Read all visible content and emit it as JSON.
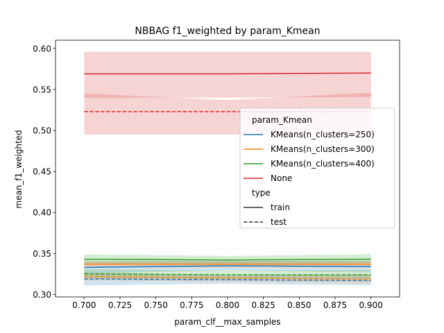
{
  "chart_data": {
    "type": "line",
    "title": "NBBAG f1_weighted by param_Kmean",
    "xlabel": "param_clf__max_samples",
    "ylabel": "mean_f1_weighted",
    "xlim": [
      0.68,
      0.92
    ],
    "ylim": [
      0.297,
      0.61
    ],
    "x_ticks": [
      0.7,
      0.725,
      0.75,
      0.775,
      0.8,
      0.825,
      0.85,
      0.875,
      0.9
    ],
    "x_tick_labels": [
      "0.700",
      "0.725",
      "0.750",
      "0.775",
      "0.800",
      "0.825",
      "0.850",
      "0.875",
      "0.900"
    ],
    "y_ticks": [
      0.3,
      0.35,
      0.4,
      0.45,
      0.5,
      0.55,
      0.6
    ],
    "y_tick_labels": [
      "0.30",
      "0.35",
      "0.40",
      "0.45",
      "0.50",
      "0.55",
      "0.60"
    ],
    "grid": false,
    "legend": {
      "placement": "center-right",
      "hue_title": "param_Kmean",
      "style_title": "type",
      "style_entries": [
        {
          "label": "train",
          "dash": "solid"
        },
        {
          "label": "test",
          "dash": "dashed"
        }
      ]
    },
    "x": [
      0.7,
      0.8,
      0.9
    ],
    "series": [
      {
        "name": "KMeans(n_clusters=250)",
        "color": "#1f77b4",
        "train": [
          0.333,
          0.335,
          0.334
        ],
        "train_ci": [
          [
            0.326,
            0.34
          ],
          [
            0.329,
            0.341
          ],
          [
            0.327,
            0.341
          ]
        ],
        "test": [
          0.319,
          0.318,
          0.317
        ],
        "test_ci": [
          [
            0.311,
            0.327
          ],
          [
            0.313,
            0.324
          ],
          [
            0.311,
            0.324
          ]
        ]
      },
      {
        "name": "KMeans(n_clusters=300)",
        "color": "#ff7f0e",
        "train": [
          0.337,
          0.337,
          0.337
        ],
        "train_ci": [
          [
            0.333,
            0.341
          ],
          [
            0.333,
            0.341
          ],
          [
            0.333,
            0.341
          ]
        ],
        "test": [
          0.322,
          0.32,
          0.319
        ],
        "test_ci": [
          [
            0.317,
            0.327
          ],
          [
            0.316,
            0.324
          ],
          [
            0.314,
            0.325
          ]
        ]
      },
      {
        "name": "KMeans(n_clusters=400)",
        "color": "#2ca02c",
        "train": [
          0.343,
          0.342,
          0.343
        ],
        "train_ci": [
          [
            0.338,
            0.349
          ],
          [
            0.337,
            0.347
          ],
          [
            0.338,
            0.349
          ]
        ],
        "test": [
          0.325,
          0.324,
          0.324
        ],
        "test_ci": [
          [
            0.32,
            0.331
          ],
          [
            0.319,
            0.329
          ],
          [
            0.319,
            0.33
          ]
        ]
      },
      {
        "name": "None",
        "color": "#d62728",
        "train": [
          0.569,
          0.569,
          0.57
        ],
        "train_ci": [
          [
            0.54,
            0.596
          ],
          [
            0.54,
            0.596
          ],
          [
            0.541,
            0.596
          ]
        ],
        "test": [
          0.523,
          0.523,
          0.523
        ],
        "test_ci": [
          [
            0.495,
            0.545
          ],
          [
            0.495,
            0.537
          ],
          [
            0.495,
            0.546
          ]
        ]
      }
    ]
  }
}
